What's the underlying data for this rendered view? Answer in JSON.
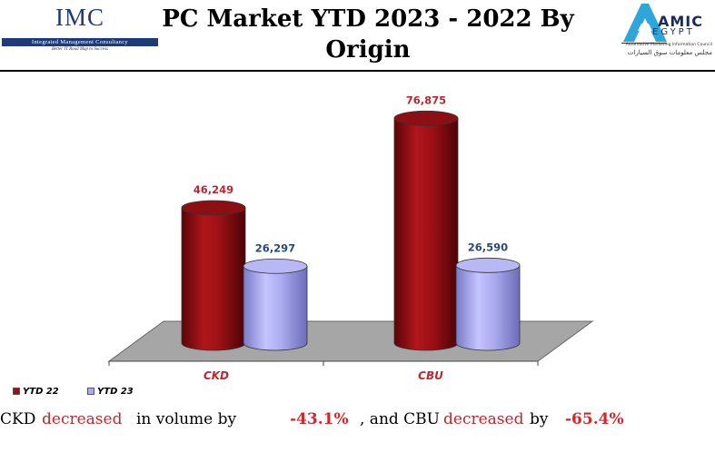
{
  "header": {
    "title_line1": "PC Market YTD 2023 - 2022 By",
    "title_line2": "Origin"
  },
  "logo_left": {
    "name": "IMC",
    "full_name": "Integrated Management Consultancy",
    "tagline": "Better IT Road Map to Success"
  },
  "logo_right": {
    "name": "AMIC",
    "sub": "EGYPT",
    "caption": "Automotive Marketing Information Council",
    "caption_ar": "مجلس معلومات سوق السيارات"
  },
  "chart_data": {
    "type": "bar",
    "categories": [
      "CKD",
      "CBU"
    ],
    "series": [
      {
        "name": "YTD 22",
        "values": [
          46249,
          76875
        ],
        "color": "#9b1015",
        "label_color": "#c0262c"
      },
      {
        "name": "YTD 23",
        "values": [
          26297,
          26590
        ],
        "color": "#aaaaf0",
        "label_color": "#2a4a7a"
      }
    ],
    "data_labels": [
      [
        "46,249",
        "76,875"
      ],
      [
        "26,297",
        "26,590"
      ]
    ],
    "ylim": [
      0,
      90000
    ],
    "grid": false,
    "legend_position": "bottom-left",
    "style": "3d-cylinder"
  },
  "summary": {
    "part1": "CKD",
    "part2": "decreased",
    "part3": "in volume by",
    "value1": "-43.1%",
    "part4": ", and CBU",
    "part5": "decreased",
    "part6": "by",
    "value2": "-65.4%"
  }
}
